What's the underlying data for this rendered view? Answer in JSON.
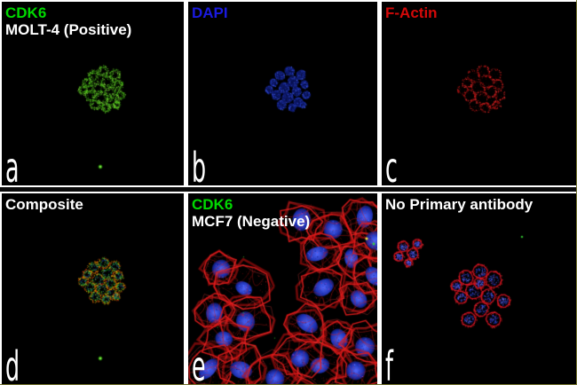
{
  "figure": {
    "background": "#000000",
    "separator_color": "#ffffff",
    "outer_edge_color": "#73732f"
  },
  "stain_colors": {
    "cdk6_green": "#00d900",
    "dapi_blue": "#1a1ae0",
    "factin_red": "#d40909",
    "label_white": "#ffffff"
  },
  "panels": {
    "a": {
      "letter": "a",
      "lines": [
        {
          "text": "CDK6",
          "color": "#00d900"
        },
        {
          "text": "MOLT-4 (Positive)",
          "color": "#ffffff"
        }
      ]
    },
    "b": {
      "letter": "b",
      "lines": [
        {
          "text": "DAPI",
          "color": "#1a1ae0"
        }
      ]
    },
    "c": {
      "letter": "c",
      "lines": [
        {
          "text": "F-Actin",
          "color": "#d40909"
        }
      ]
    },
    "d": {
      "letter": "d",
      "lines": [
        {
          "text": "Composite",
          "color": "#ffffff"
        }
      ]
    },
    "e": {
      "letter": "e",
      "lines": [
        {
          "text": "CDK6",
          "color": "#00d900"
        },
        {
          "text": "MCF7 (Negative)",
          "color": "#ffffff"
        }
      ]
    },
    "f": {
      "letter": "f",
      "lines": [
        {
          "text": "No Primary antibody",
          "color": "#ffffff"
        }
      ]
    }
  }
}
